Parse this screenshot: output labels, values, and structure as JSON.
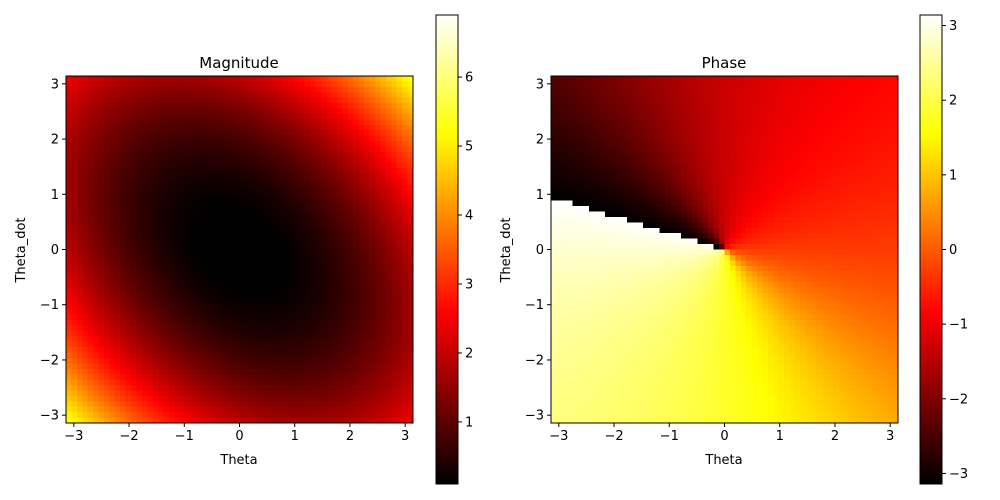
{
  "chart_data": [
    {
      "type": "heatmap",
      "title": "Magnitude",
      "xlabel": "Theta",
      "ylabel": "Theta_dot",
      "xlim": [
        -3.14159,
        3.14159
      ],
      "ylim": [
        -3.14159,
        3.14159
      ],
      "xticks": [
        -3,
        -2,
        -1,
        0,
        1,
        2,
        3
      ],
      "yticks": [
        -3,
        -2,
        -1,
        0,
        1,
        2,
        3
      ],
      "colormap": "hot",
      "colorbar": {
        "range": [
          0.1,
          6.9
        ],
        "ticks": [
          1,
          2,
          3,
          4,
          5,
          6
        ]
      },
      "grid": false
    },
    {
      "type": "heatmap",
      "title": "Phase",
      "xlabel": "Theta",
      "ylabel": "Theta_dot",
      "xlim": [
        -3.14159,
        3.14159
      ],
      "ylim": [
        -3.14159,
        3.14159
      ],
      "xticks": [
        -3,
        -2,
        -1,
        0,
        1,
        2,
        3
      ],
      "yticks": [
        -3,
        -2,
        -1,
        0,
        1,
        2,
        3
      ],
      "colormap": "hot",
      "colorbar": {
        "range": [
          -3.14159,
          3.14159
        ],
        "ticks": [
          -3,
          -2,
          -1,
          0,
          1,
          2,
          3
        ]
      },
      "grid": false
    }
  ]
}
